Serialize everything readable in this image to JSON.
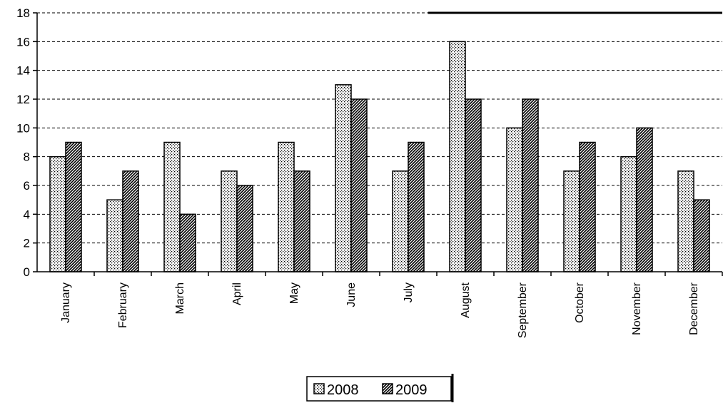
{
  "chart_data": {
    "type": "bar",
    "categories": [
      "January",
      "February",
      "March",
      "April",
      "May",
      "June",
      "July",
      "August",
      "September",
      "October",
      "November",
      "December"
    ],
    "series": [
      {
        "name": "2008",
        "values": [
          8,
          5,
          9,
          7,
          9,
          13,
          7,
          16,
          10,
          7,
          8,
          7
        ],
        "pattern": "dotted"
      },
      {
        "name": "2009",
        "values": [
          9,
          7,
          4,
          6,
          7,
          12,
          9,
          12,
          12,
          9,
          10,
          5
        ],
        "pattern": "hatched"
      }
    ],
    "title": "",
    "xlabel": "",
    "ylabel": "",
    "ylim": [
      0,
      18
    ],
    "yticks": [
      0,
      2,
      4,
      6,
      8,
      10,
      12,
      14,
      16,
      18
    ],
    "ytick_labels": [
      "0",
      "2",
      "4",
      "6",
      "8",
      "10",
      "12",
      "14",
      "16",
      "18"
    ],
    "grid": "horizontal dashed",
    "legend": "bottom-center",
    "colors": {
      "bar_fill": "#ffffff",
      "ink": "#000000"
    }
  }
}
